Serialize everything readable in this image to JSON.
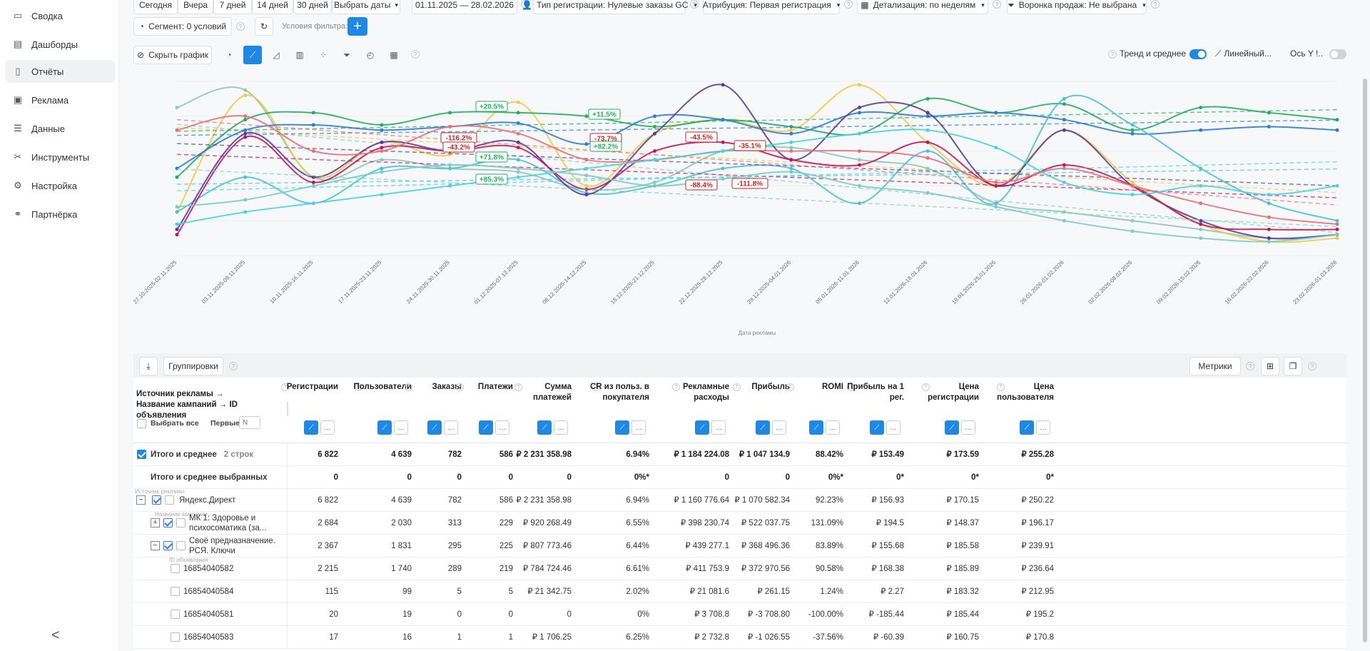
{
  "sidebar": {
    "items": [
      {
        "label": "Сводка",
        "icon": "summary-icon"
      },
      {
        "label": "Дашборды",
        "icon": "dashboard-icon"
      },
      {
        "label": "Отчёты",
        "icon": "reports-icon",
        "active": true
      },
      {
        "label": "Реклама",
        "icon": "ads-icon"
      },
      {
        "label": "Данные",
        "icon": "database-icon"
      },
      {
        "label": "Инструменты",
        "icon": "tools-icon"
      },
      {
        "label": "Настройка",
        "icon": "settings-icon"
      },
      {
        "label": "Партнёрка",
        "icon": "partners-icon"
      }
    ],
    "collapse_label": "<"
  },
  "toolbar": {
    "today": "Сегодня",
    "yesterday": "Вчера",
    "d7": "7 дней",
    "d14": "14 дней",
    "d30": "30 дней",
    "pick_dates": "Выбрать даты",
    "date_range": "01.11.2025  —  28.02.2026",
    "reg_type": "Тип регистрации: Нулевые заказы GC",
    "attribution": "Атрибуция: Первая регистрация",
    "detail": "Детализация:  по неделям",
    "funnel": "Воронка продаж: Не выбрана",
    "segment": "Сегмент: 0 условий",
    "filter_label": "Условия фильтра:",
    "hide_chart": "Скрыть график",
    "trend_label": "Тренд и среднее",
    "linear_label": "Линейный...",
    "axis_label": "Ось Y  !..",
    "trend_on": true,
    "axis_on": false
  },
  "chart_icons": [
    "pie-chart-icon",
    "line-chart-icon",
    "area-chart-icon",
    "bar-chart-icon",
    "scatter-chart-icon",
    "funnel-chart-icon",
    "gauge-chart-icon",
    "grid-chart-icon"
  ],
  "chart_data": {
    "type": "line",
    "xlabel": "Дата рекламы",
    "ylabel": "",
    "categories": [
      "27.10.2025-02.11.2025",
      "03.11.2025-09.11.2025",
      "10.11.2025-16.11.2025",
      "17.11.2025-23.11.2025",
      "24.11.2025-30.11.2025",
      "01.12.2025-07.12.2025",
      "08.12.2025-14.12.2025",
      "15.12.2025-21.12.2025",
      "22.12.2025-28.12.2025",
      "29.12.2025-04.01.2026",
      "05.01.2026-11.01.2026",
      "12.01.2026-18.01.2026",
      "19.01.2026-25.01.2026",
      "26.01.2026-01.02.2026",
      "02.02.2026-08.02.2026",
      "09.02.2026-15.02.2026",
      "16.02.2026-22.02.2026",
      "23.02.2026-01.03.2026"
    ],
    "ylim": [
      0,
      100
    ],
    "grid": true,
    "series": [
      {
        "color": "#8fc8b8",
        "values": [
          85,
          95,
          45,
          55,
          50,
          48,
          38,
          42,
          60,
          62,
          55,
          50,
          30,
          25,
          20,
          15,
          10,
          12
        ]
      },
      {
        "color": "#f2c94c",
        "values": [
          25,
          92,
          45,
          65,
          58,
          88,
          40,
          70,
          78,
          72,
          98,
          65,
          40,
          72,
          42,
          18,
          8,
          10
        ]
      },
      {
        "color": "#27ae60",
        "values": [
          45,
          78,
          82,
          75,
          82,
          82,
          80,
          74,
          78,
          74,
          70,
          90,
          82,
          87,
          72,
          85,
          82,
          78
        ]
      },
      {
        "color": "#2d7dd2",
        "values": [
          50,
          72,
          75,
          72,
          74,
          76,
          64,
          80,
          78,
          70,
          82,
          80,
          82,
          78,
          70,
          72,
          74,
          72
        ]
      },
      {
        "color": "#4ec1d8",
        "values": [
          25,
          45,
          30,
          50,
          50,
          55,
          36,
          40,
          50,
          50,
          30,
          60,
          30,
          90,
          75,
          50,
          30,
          20
        ]
      },
      {
        "color": "#5b3b9c",
        "values": [
          15,
          70,
          45,
          65,
          60,
          65,
          35,
          70,
          98,
          55,
          85,
          82,
          40,
          72,
          40,
          20,
          10,
          12
        ]
      },
      {
        "color": "#c2185b",
        "values": [
          12,
          68,
          42,
          62,
          60,
          62,
          38,
          60,
          65,
          55,
          52,
          65,
          40,
          52,
          40,
          18,
          15,
          15
        ]
      },
      {
        "color": "#e57373",
        "values": [
          72,
          80,
          60,
          60,
          74,
          70,
          55,
          55,
          60,
          60,
          60,
          56,
          42,
          50,
          40,
          30,
          22,
          18
        ]
      },
      {
        "color": "#4dd0e1",
        "values": [
          18,
          25,
          30,
          35,
          40,
          45,
          50,
          55,
          60,
          65,
          70,
          72,
          62,
          42,
          35,
          40,
          35,
          40
        ]
      },
      {
        "color": "#80cbc4",
        "values": [
          28,
          32,
          40,
          48,
          52,
          50,
          46,
          40,
          44,
          48,
          40,
          36,
          28,
          20,
          14,
          10,
          8,
          12
        ]
      }
    ],
    "annotations": [
      {
        "text": "+20.5%",
        "color": "#27ae60"
      },
      {
        "text": "+11.5%",
        "color": "#27ae60"
      },
      {
        "text": "-116.2%",
        "color": "#c62828"
      },
      {
        "text": "-43.2%",
        "color": "#c62828"
      },
      {
        "text": "-73.7%",
        "color": "#c62828"
      },
      {
        "text": "+82.2%",
        "color": "#27ae60"
      },
      {
        "text": "+71.8%",
        "color": "#27ae60"
      },
      {
        "text": "+85.3%",
        "color": "#27ae60"
      },
      {
        "text": "-43.5%",
        "color": "#c62828"
      },
      {
        "text": "-35.1%",
        "color": "#c62828"
      },
      {
        "text": "-88.4%",
        "color": "#c62828"
      },
      {
        "text": "-111.8%",
        "color": "#c62828"
      }
    ]
  },
  "table_toolbar": {
    "groupings": "Группировки",
    "metrics": "Метрики"
  },
  "table": {
    "first_col_header": "Источник рекламы → Название кампаний → ID объявления",
    "select_all": "Выбрать все",
    "first_label": "Первые",
    "first_placeholder": "N",
    "headers": [
      "Регистрации",
      "Пользователи",
      "Заказы",
      "Платежи",
      "Сумма платежей",
      "CR из польз. в покупателя",
      "Рекламные расходы",
      "Прибыль",
      "ROMI",
      "Прибыль на 1 рег.",
      "Цена регистрации",
      "Цена пользователя"
    ],
    "total_row": {
      "label": "Итого и среднее",
      "count": "2 строк",
      "values": [
        "6 822",
        "4 639",
        "782",
        "586",
        "₽ 2 231 358.98",
        "6.94%",
        "₽ 1 184 224.08",
        "₽ 1 047 134.9",
        "88.42%",
        "₽ 153.49",
        "₽ 173.59",
        "₽ 255.28"
      ]
    },
    "selected_row": {
      "label": "Итого и среднее выбранных",
      "values": [
        "0",
        "0",
        "0",
        "0",
        "0",
        "0%*",
        "0",
        "0",
        "0%*",
        "0*",
        "0*",
        "0*"
      ]
    },
    "rows": [
      {
        "label": "Яндекс.Директ",
        "tag": "Источник рекламы",
        "values": [
          "6 822",
          "4 639",
          "782",
          "586",
          "₽ 2 231 358.98",
          "6.94%",
          "₽ 1 160 776.64",
          "₽ 1 070 582.34",
          "92.23%",
          "₽ 156.93",
          "₽ 170.15",
          "₽ 250.22"
        ]
      },
      {
        "label": "МК 1: Здоровье и психосоматика (за...",
        "tag": "Название кампании",
        "values": [
          "2 684",
          "2 030",
          "313",
          "229",
          "₽ 920 268.49",
          "6.55%",
          "₽ 398 230.74",
          "₽ 522 037.75",
          "131.09%",
          "₽ 194.5",
          "₽ 148.37",
          "₽ 196.17"
        ]
      },
      {
        "label": "Своё предназначение. РСЯ. Ключи",
        "tag": "",
        "values": [
          "2 367",
          "1 831",
          "295",
          "225",
          "₽ 807 773.46",
          "6.44%",
          "₽ 439 277.1",
          "₽ 368 496.36",
          "83.89%",
          "₽ 155.68",
          "₽ 185.58",
          "₽ 239.91"
        ]
      },
      {
        "label": "16854040582",
        "tag": "ID объявления",
        "values": [
          "2 215",
          "1 740",
          "289",
          "219",
          "₽ 784 724.46",
          "6.61%",
          "₽ 411 753.9",
          "₽ 372 970.56",
          "90.58%",
          "₽ 168.38",
          "₽ 185.89",
          "₽ 236.64"
        ]
      },
      {
        "label": "16854040584",
        "tag": "",
        "values": [
          "115",
          "99",
          "5",
          "5",
          "₽ 21 342.75",
          "2.02%",
          "₽ 21 081.6",
          "₽ 261.15",
          "1.24%",
          "₽ 2.27",
          "₽ 183.32",
          "₽ 212.95"
        ]
      },
      {
        "label": "16854040581",
        "tag": "",
        "values": [
          "20",
          "19",
          "0",
          "0",
          "0",
          "0%",
          "₽ 3 708.8",
          "₽ -3 708.80",
          "-100.00%",
          "₽ -185.44",
          "₽ 185.44",
          "₽ 195.2"
        ]
      },
      {
        "label": "16854040583",
        "tag": "",
        "values": [
          "17",
          "16",
          "1",
          "1",
          "₽ 1 706.25",
          "6.25%",
          "₽ 2 732.8",
          "₽ -1 026.55",
          "-37.56%",
          "₽ -60.39",
          "₽ 160.75",
          "₽ 170.8"
        ]
      }
    ]
  }
}
